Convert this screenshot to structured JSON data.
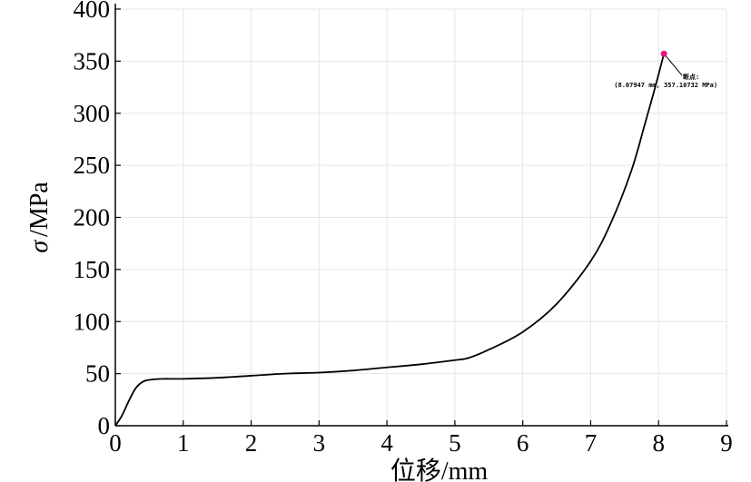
{
  "chart_data": {
    "type": "line",
    "title": "",
    "xlabel": "位移/mm",
    "ylabel_symbol": "σ",
    "ylabel_unit": "/MPa",
    "xlim": [
      0,
      9
    ],
    "ylim": [
      0,
      400
    ],
    "xticks": [
      0,
      1,
      2,
      3,
      4,
      5,
      6,
      7,
      8,
      9
    ],
    "yticks": [
      0,
      50,
      100,
      150,
      200,
      250,
      300,
      350,
      400
    ],
    "grid": true,
    "series": [
      {
        "x": [
          0,
          0.1,
          0.2,
          0.3,
          0.4,
          0.5,
          0.7,
          1.0,
          1.5,
          2.0,
          2.5,
          3.0,
          3.5,
          4.0,
          4.5,
          5.0,
          5.2,
          5.5,
          6.0,
          6.5,
          7.0,
          7.3,
          7.6,
          7.8,
          7.95,
          8.07947
        ],
        "y": [
          0,
          10,
          24,
          36,
          42,
          44,
          45,
          45,
          46,
          48,
          50,
          51,
          53,
          56,
          59,
          63,
          65,
          73,
          90,
          117,
          158,
          195,
          245,
          290,
          325,
          357.10732
        ]
      }
    ],
    "annotation": {
      "x": 8.07947,
      "y": 357.10732,
      "marker_color": "#e8127f",
      "label_title": "断点:",
      "label_value": "(8.07947 mm, 357.10732 MPa)"
    }
  }
}
